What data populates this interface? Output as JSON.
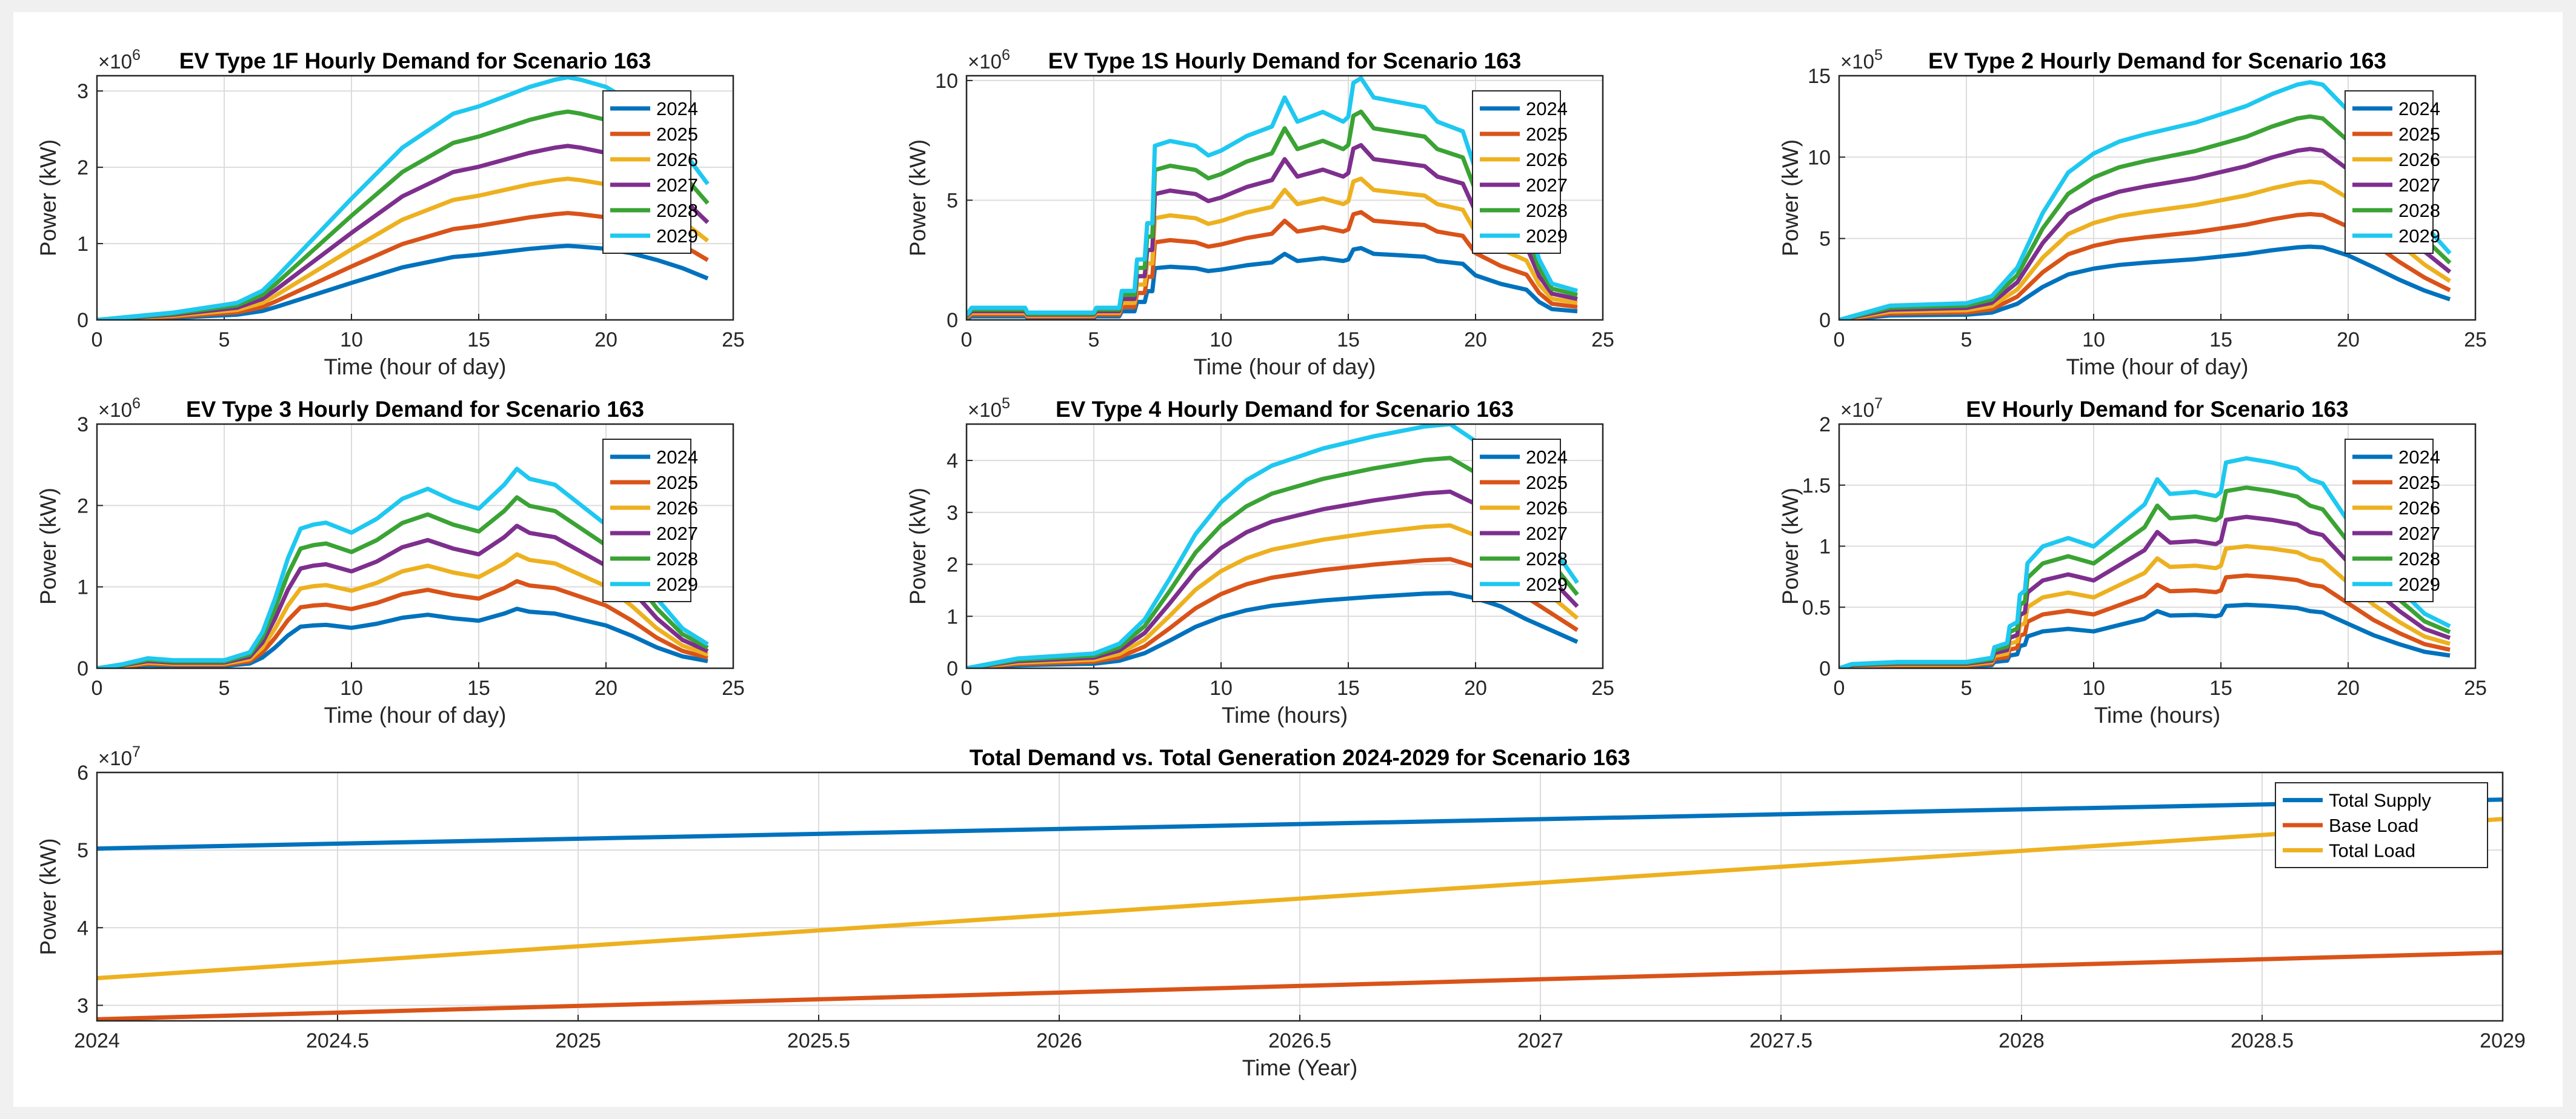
{
  "figure_title": "",
  "colors": {
    "2024": "#0072BD",
    "2025": "#D95319",
    "2026": "#EDB120",
    "2027": "#7E2F8E",
    "2028": "#3AA334",
    "2029": "#1EC8F0",
    "total_supply": "#0072BD",
    "base_load": "#D95319",
    "total_load": "#EDB120"
  },
  "chart_data": [
    {
      "id": "ev1f",
      "type": "line",
      "title": "EV Type 1F Hourly Demand for Scenario 163",
      "xlabel": "Time (hour of day)",
      "ylabel": "Power (kW)",
      "exponent_base": "10",
      "exponent": "6",
      "xlim": [
        0,
        25
      ],
      "ylim": [
        0,
        3.2
      ],
      "xticks": [
        "0",
        "5",
        "10",
        "15",
        "20",
        "25"
      ],
      "yticks": [
        "0",
        "1",
        "2",
        "3"
      ],
      "legend": [
        "2024",
        "2025",
        "2026",
        "2027",
        "2028",
        "2029"
      ],
      "shape_x": [
        0,
        3,
        5.5,
        6.5,
        7,
        8,
        10,
        12,
        14,
        15,
        16,
        17,
        18,
        18.5,
        19,
        20,
        21,
        22,
        23,
        24
      ],
      "shape_y": [
        0,
        0.03,
        0.07,
        0.12,
        0.17,
        0.28,
        0.5,
        0.71,
        0.85,
        0.88,
        0.92,
        0.96,
        0.99,
        1.0,
        0.99,
        0.96,
        0.9,
        0.81,
        0.7,
        0.56
      ],
      "series_peaks": [
        0.97,
        1.4,
        1.85,
        2.28,
        2.73,
        3.18
      ]
    },
    {
      "id": "ev1s",
      "type": "line",
      "title": "EV Type 1S Hourly Demand for Scenario 163",
      "xlabel": "Time (hour of day)",
      "ylabel": "Power (kW)",
      "exponent_base": "10",
      "exponent": "6",
      "xlim": [
        0,
        25
      ],
      "ylim": [
        0,
        10.2
      ],
      "xticks": [
        "0",
        "5",
        "10",
        "15",
        "20",
        "25"
      ],
      "yticks": [
        "0",
        "5",
        "10"
      ],
      "legend": [
        "2024",
        "2025",
        "2026",
        "2027",
        "2028",
        "2029"
      ],
      "shape_x": [
        0,
        0.2,
        2.3,
        2.4,
        5,
        5.1,
        6,
        6.1,
        6.6,
        6.7,
        7,
        7.1,
        7.3,
        7.4,
        8,
        9,
        9.5,
        10,
        11,
        12,
        12.5,
        13,
        14,
        14.8,
        15,
        15.2,
        15.5,
        16,
        17,
        18,
        18.5,
        19,
        19.5,
        20,
        21,
        22,
        22.5,
        23,
        24
      ],
      "shape_y": [
        0.02,
        0.05,
        0.05,
        0.03,
        0.03,
        0.05,
        0.05,
        0.12,
        0.12,
        0.25,
        0.25,
        0.4,
        0.4,
        0.72,
        0.74,
        0.72,
        0.68,
        0.7,
        0.76,
        0.8,
        0.92,
        0.82,
        0.86,
        0.82,
        0.84,
        0.98,
        1.0,
        0.92,
        0.9,
        0.88,
        0.82,
        0.8,
        0.78,
        0.62,
        0.5,
        0.42,
        0.25,
        0.15,
        0.12
      ],
      "series_peaks": [
        3.0,
        4.5,
        5.9,
        7.3,
        8.7,
        10.1
      ]
    },
    {
      "id": "ev2",
      "type": "line",
      "title": "EV Type 2 Hourly Demand for Scenario 163",
      "xlabel": "Time (hour of day)",
      "ylabel": "Power (kW)",
      "exponent_base": "10",
      "exponent": "5",
      "xlim": [
        0,
        25
      ],
      "ylim": [
        0,
        15
      ],
      "xticks": [
        "0",
        "5",
        "10",
        "15",
        "20",
        "25"
      ],
      "yticks": [
        "0",
        "5",
        "10",
        "15"
      ],
      "legend": [
        "2024",
        "2025",
        "2026",
        "2027",
        "2028",
        "2029"
      ],
      "shape_x": [
        0,
        2,
        5,
        6,
        7,
        8,
        9,
        10,
        11,
        12,
        14,
        16,
        17,
        18,
        18.5,
        19,
        20,
        21,
        22,
        23,
        24
      ],
      "shape_y": [
        0,
        0.06,
        0.07,
        0.1,
        0.22,
        0.45,
        0.62,
        0.7,
        0.75,
        0.78,
        0.83,
        0.9,
        0.95,
        0.99,
        1.0,
        0.99,
        0.88,
        0.72,
        0.55,
        0.4,
        0.28
      ],
      "series_peaks": [
        4.5,
        6.5,
        8.5,
        10.5,
        12.5,
        14.6
      ]
    },
    {
      "id": "ev3",
      "type": "line",
      "title": "EV Type 3 Hourly Demand for Scenario 163",
      "xlabel": "Time (hour of day)",
      "ylabel": "Power (kW)",
      "exponent_base": "10",
      "exponent": "6",
      "xlim": [
        0,
        25
      ],
      "ylim": [
        0,
        3
      ],
      "xticks": [
        "0",
        "5",
        "10",
        "15",
        "20",
        "25"
      ],
      "yticks": [
        "0",
        "1",
        "2",
        "3"
      ],
      "legend": [
        "2024",
        "2025",
        "2026",
        "2027",
        "2028",
        "2029"
      ],
      "shape_x": [
        0,
        1,
        2,
        3,
        5,
        6,
        6.5,
        7,
        7.5,
        8,
        8.5,
        9,
        10,
        11,
        12,
        13,
        14,
        15,
        16,
        16.5,
        17,
        18,
        19,
        20,
        21,
        22,
        23,
        24
      ],
      "shape_y": [
        0,
        0.02,
        0.05,
        0.04,
        0.04,
        0.08,
        0.18,
        0.35,
        0.55,
        0.7,
        0.72,
        0.73,
        0.68,
        0.75,
        0.85,
        0.9,
        0.84,
        0.8,
        0.92,
        1.0,
        0.95,
        0.92,
        0.82,
        0.72,
        0.55,
        0.35,
        0.2,
        0.12
      ],
      "series_peaks": [
        0.73,
        1.07,
        1.4,
        1.75,
        2.1,
        2.45
      ]
    },
    {
      "id": "ev4",
      "type": "line",
      "title": "EV Type 4 Hourly Demand for Scenario 163",
      "xlabel": "Time (hours)",
      "ylabel": "Power (kW)",
      "exponent_base": "10",
      "exponent": "5",
      "xlim": [
        0,
        25
      ],
      "ylim": [
        0,
        4.7
      ],
      "xticks": [
        "0",
        "5",
        "10",
        "15",
        "20",
        "25"
      ],
      "yticks": [
        "0",
        "1",
        "2",
        "3",
        "4"
      ],
      "legend": [
        "2024",
        "2025",
        "2026",
        "2027",
        "2028",
        "2029"
      ],
      "shape_x": [
        0,
        2,
        5,
        6,
        7,
        8,
        9,
        10,
        11,
        12,
        14,
        16,
        17,
        18,
        19,
        20,
        21,
        22,
        23,
        24
      ],
      "shape_y": [
        0,
        0.04,
        0.06,
        0.1,
        0.2,
        0.37,
        0.55,
        0.68,
        0.77,
        0.83,
        0.9,
        0.95,
        0.97,
        0.99,
        1.0,
        0.93,
        0.82,
        0.65,
        0.5,
        0.35
      ],
      "series_peaks": [
        1.45,
        2.1,
        2.75,
        3.4,
        4.05,
        4.7
      ]
    },
    {
      "id": "evall",
      "type": "line",
      "title": "EV Hourly Demand for Scenario 163",
      "xlabel": "Time (hours)",
      "ylabel": "Power (kW)",
      "exponent_base": "10",
      "exponent": "7",
      "xlim": [
        0,
        25
      ],
      "ylim": [
        0,
        2
      ],
      "xticks": [
        "0",
        "5",
        "10",
        "15",
        "20",
        "25"
      ],
      "yticks": [
        "0",
        "0.5",
        "1",
        "1.5",
        "2"
      ],
      "legend": [
        "2024",
        "2025",
        "2026",
        "2027",
        "2028",
        "2029"
      ],
      "shape_x": [
        0,
        0.5,
        2.3,
        5,
        6,
        6.1,
        6.6,
        6.7,
        7,
        7.1,
        7.3,
        7.4,
        8,
        9,
        10,
        11,
        12,
        12.5,
        13,
        14,
        14.8,
        15,
        15.2,
        16,
        17,
        18,
        18.5,
        19,
        20,
        21,
        22,
        23,
        24
      ],
      "shape_y": [
        0,
        0.02,
        0.03,
        0.03,
        0.05,
        0.1,
        0.12,
        0.2,
        0.22,
        0.35,
        0.37,
        0.5,
        0.58,
        0.62,
        0.58,
        0.68,
        0.78,
        0.9,
        0.83,
        0.84,
        0.82,
        0.84,
        0.98,
        1.0,
        0.98,
        0.95,
        0.9,
        0.88,
        0.7,
        0.52,
        0.38,
        0.26,
        0.2
      ],
      "series_peaks": [
        0.52,
        0.76,
        1.0,
        1.24,
        1.48,
        1.72
      ]
    },
    {
      "id": "total",
      "type": "line",
      "title": "Total Demand vs. Total Generation 2024-2029 for Scenario 163",
      "xlabel": "Time (Year)",
      "ylabel": "Power (kW)",
      "exponent_base": "10",
      "exponent": "7",
      "xlim": [
        2024,
        2029
      ],
      "ylim": [
        2.8,
        6
      ],
      "xticks": [
        "2024",
        "2024.5",
        "2025",
        "2025.5",
        "2026",
        "2026.5",
        "2027",
        "2027.5",
        "2028",
        "2028.5",
        "2029"
      ],
      "yticks": [
        "3",
        "4",
        "5",
        "6"
      ],
      "legend": [
        "Total Supply",
        "Base Load",
        "Total Load"
      ],
      "x": [
        2024,
        2029
      ],
      "series": [
        {
          "name": "Total Supply",
          "values": [
            5.02,
            5.65
          ]
        },
        {
          "name": "Base Load",
          "values": [
            2.82,
            3.68
          ]
        },
        {
          "name": "Total Load",
          "values": [
            3.35,
            5.4
          ]
        }
      ]
    }
  ]
}
